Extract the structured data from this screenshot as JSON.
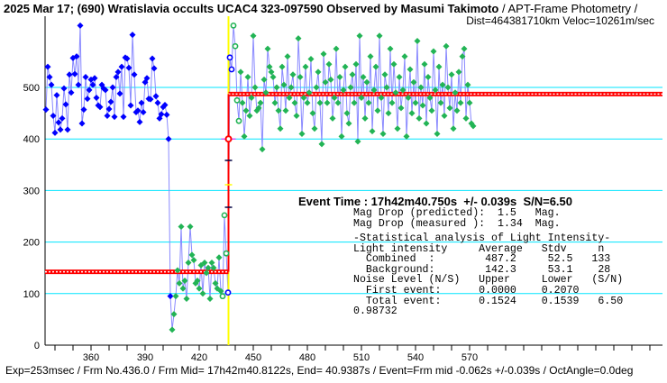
{
  "header": {
    "title_bold": "2025 Mar 17; (690) Wratislavia occults UCAC4 323-097590 Observed by Masumi Takimoto",
    "title_rest": " / APT-Frame Photometry /",
    "subtitle": "Dist=464381710km Veloc=10261m/sec"
  },
  "event": {
    "headline": "Event Time : 17h42m40.750s  +/- 0.039s  S/N=6.50",
    "lines": [
      "Mag Drop (predicted):  1.5   Mag.",
      "Mag Drop (measured ):  1.34  Mag."
    ],
    "stats": [
      "-Statistical analysis of Light Intensity-",
      "Light intensity     Average   Stdv     n",
      "  Combined  :        487.2     52.5   133",
      "  Background:        142.3     53.1    28",
      "Noise Level (N/S)   Upper     Lower   (S/N)",
      "  First event:      0.0000    0.2070",
      "  Total event:      0.1524    0.1539   6.50",
      "0.98732"
    ]
  },
  "footer": "Exp=253msec / Frm No.436.0 / Frm Mid= 17h42m40.8122s,  End= 40.9387s / Event=Frm mid -0.062s +/-0.039s / OctAngle=0.0deg",
  "chart_data": {
    "type": "scatter",
    "xlim": [
      334.5,
      677
    ],
    "ylim": [
      0,
      630
    ],
    "x_ticks": [
      360,
      390,
      420,
      450,
      480,
      510,
      540,
      570
    ],
    "y_ticks": [
      0,
      100,
      200,
      300,
      400,
      500
    ],
    "grid": true,
    "colors": {
      "blue": "#0000ff",
      "green": "#22b455",
      "line": "#8a8aff",
      "grid": "#00e5ff",
      "fit": "#ff0000",
      "event": "#ffff00"
    },
    "event_frame": 436.5,
    "levels": {
      "background": 142.3,
      "combined": 487.2
    },
    "series": [
      {
        "color": "blue",
        "start_frame": 335,
        "values": [
          457,
          540,
          520,
          505,
          445,
          412,
          485,
          432,
          418,
          440,
          498,
          467,
          418,
          525,
          490,
          557,
          526,
          560,
          505,
          620,
          430,
          457,
          520,
          478,
          495,
          515,
          505,
          518,
          480,
          465,
          462,
          505,
          498,
          495,
          445,
          458,
          472,
          500,
          443,
          520,
          530,
          488,
          540,
          443,
          558,
          556,
          538,
          465,
          602,
          525,
          452,
          455,
          433,
          470,
          452,
          510,
          518,
          478,
          477,
          556,
          537,
          483,
          470,
          440,
          448,
          462,
          466,
          447,
          400,
          95
        ]
      },
      {
        "color": "green",
        "start_frame": 405,
        "values": [
          30,
          60,
          95,
          145,
          120,
          230,
          110,
          125,
          90,
          160,
          230,
          175,
          165,
          120,
          125,
          110,
          155,
          100,
          160,
          140,
          150,
          90,
          160,
          150,
          120,
          110,
          170,
          105
        ]
      },
      {
        "color": "green",
        "open": true,
        "start_frame": 433,
        "values": [
          95,
          252,
          178
        ]
      },
      {
        "color": "blue",
        "open": true,
        "start_frame": 436,
        "values": [
          102,
          558,
          535
        ]
      },
      {
        "color": "green",
        "open": true,
        "start_frame": 439,
        "values": [
          620,
          580,
          475,
          435
        ]
      },
      {
        "color": "green",
        "start_frame": 443,
        "values": [
          530,
          470,
          405,
          455,
          520,
          445,
          480,
          600,
          500,
          455,
          460,
          470,
          380,
          515,
          490,
          575,
          540,
          530,
          520,
          470,
          500,
          455,
          420,
          540,
          505,
          455,
          560,
          480,
          500,
          525,
          470,
          445,
          595,
          520,
          410,
          480,
          540,
          470,
          490,
          555,
          450,
          420,
          500,
          530,
          470,
          390,
          565,
          510,
          470,
          545,
          515,
          440,
          480,
          575,
          470,
          520,
          405,
          495,
          540,
          450,
          430,
          500,
          525,
          470,
          545,
          395,
          600,
          480,
          520,
          440,
          510,
          470,
          560,
          415,
          495,
          540,
          455,
          600,
          480,
          410,
          525,
          500,
          450,
          575,
          470,
          545,
          490,
          420,
          520,
          460,
          495,
          560,
          405,
          480,
          535,
          450,
          510,
          470,
          590,
          440,
          500,
          465,
          545,
          430,
          520,
          480,
          455,
          570,
          495,
          410,
          540,
          470,
          505,
          445,
          580,
          500,
          460,
          525,
          420,
          490,
          455,
          530,
          470,
          560,
          575,
          440,
          505,
          470,
          430,
          425
        ]
      }
    ]
  }
}
